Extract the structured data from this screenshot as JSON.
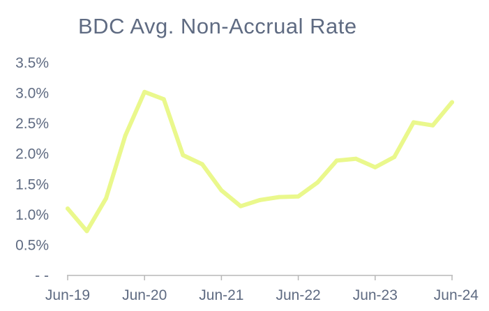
{
  "chart_data": {
    "type": "line",
    "title": "BDC Avg. Non-Accrual Rate",
    "xlabel": "",
    "ylabel": "",
    "ylim": [
      0,
      3.5
    ],
    "y_ticks": [
      {
        "value": 0,
        "label": "- -"
      },
      {
        "value": 0.5,
        "label": "0.5%"
      },
      {
        "value": 1.0,
        "label": "1.0%"
      },
      {
        "value": 1.5,
        "label": "1.5%"
      },
      {
        "value": 2.0,
        "label": "2.0%"
      },
      {
        "value": 2.5,
        "label": "2.5%"
      },
      {
        "value": 3.0,
        "label": "3.0%"
      },
      {
        "value": 3.5,
        "label": "3.5%"
      }
    ],
    "x_ticks": [
      {
        "value": "2019-06",
        "label": "Jun-19"
      },
      {
        "value": "2020-06",
        "label": "Jun-20"
      },
      {
        "value": "2021-06",
        "label": "Jun-21"
      },
      {
        "value": "2022-06",
        "label": "Jun-22"
      },
      {
        "value": "2023-06",
        "label": "Jun-23"
      },
      {
        "value": "2024-06",
        "label": "Jun-24"
      }
    ],
    "x_range": [
      "2019-06",
      "2024-06"
    ],
    "grid": false,
    "line_color": "#eaf88c",
    "text_color": "#5f6b82",
    "axis_color": "#b7b7b7",
    "series": [
      {
        "points": [
          {
            "x": "2019-06",
            "y": 1.1
          },
          {
            "x": "2019-09",
            "y": 0.73
          },
          {
            "x": "2019-12",
            "y": 1.27
          },
          {
            "x": "2020-03",
            "y": 2.3
          },
          {
            "x": "2020-06",
            "y": 3.02
          },
          {
            "x": "2020-09",
            "y": 2.9
          },
          {
            "x": "2020-12",
            "y": 1.98
          },
          {
            "x": "2021-03",
            "y": 1.83
          },
          {
            "x": "2021-06",
            "y": 1.4
          },
          {
            "x": "2021-09",
            "y": 1.14
          },
          {
            "x": "2021-12",
            "y": 1.24
          },
          {
            "x": "2022-03",
            "y": 1.29
          },
          {
            "x": "2022-06",
            "y": 1.3
          },
          {
            "x": "2022-09",
            "y": 1.53
          },
          {
            "x": "2022-12",
            "y": 1.89
          },
          {
            "x": "2023-03",
            "y": 1.92
          },
          {
            "x": "2023-06",
            "y": 1.78
          },
          {
            "x": "2023-09",
            "y": 1.95
          },
          {
            "x": "2023-12",
            "y": 2.52
          },
          {
            "x": "2024-03",
            "y": 2.47
          },
          {
            "x": "2024-06",
            "y": 2.85
          }
        ]
      }
    ]
  }
}
